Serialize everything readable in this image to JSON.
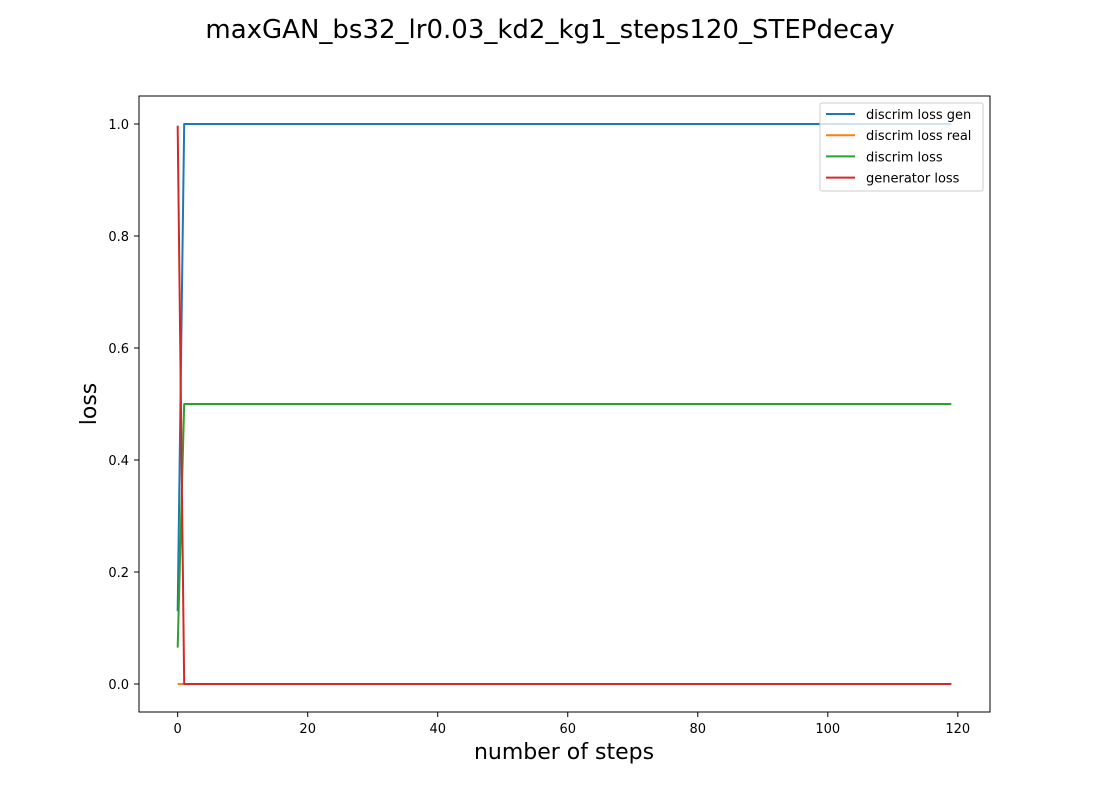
{
  "chart_data": {
    "type": "line",
    "title": "maxGAN_bs32_lr0.03_kd2_kg1_steps120_STEPdecay",
    "xlabel": "number of steps",
    "ylabel": "loss",
    "xlim": [
      -5.95,
      124.95
    ],
    "ylim": [
      -0.05,
      1.05
    ],
    "xticks": [
      0,
      20,
      40,
      60,
      80,
      100,
      120
    ],
    "yticks": [
      0.0,
      0.2,
      0.4,
      0.6,
      0.8,
      1.0
    ],
    "ytick_labels": [
      "0.0",
      "0.2",
      "0.4",
      "0.6",
      "0.8",
      "1.0"
    ],
    "grid": false,
    "legend_position": "top-right",
    "series": [
      {
        "name": "discrim loss gen",
        "color": "#1f77b4",
        "points": [
          [
            0,
            0.13
          ],
          [
            1,
            1.0
          ],
          [
            119,
            1.0
          ]
        ]
      },
      {
        "name": "discrim loss real",
        "color": "#ff7f0e",
        "points": [
          [
            0,
            0.0
          ],
          [
            1,
            0.0
          ],
          [
            119,
            0.0
          ]
        ]
      },
      {
        "name": "discrim loss",
        "color": "#2ca02c",
        "points": [
          [
            0,
            0.065
          ],
          [
            1,
            0.5
          ],
          [
            119,
            0.5
          ]
        ]
      },
      {
        "name": "generator loss",
        "color": "#d62728",
        "points": [
          [
            0,
            0.997
          ],
          [
            1,
            0.0
          ],
          [
            119,
            0.0
          ]
        ]
      }
    ]
  }
}
